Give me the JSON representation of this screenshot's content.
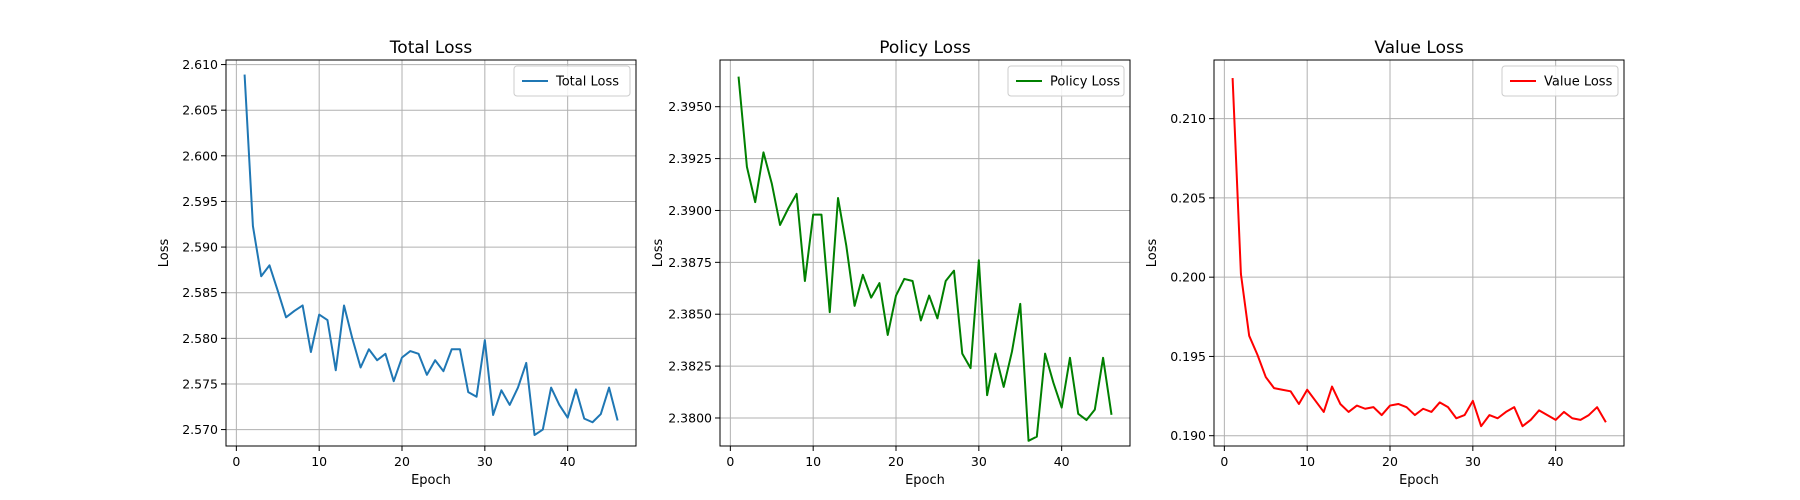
{
  "chart_data": [
    {
      "type": "line",
      "title": "Total Loss",
      "xlabel": "Epoch",
      "ylabel": "Loss",
      "xlim": [
        -1.25,
        48.25
      ],
      "ylim": [
        2.5682,
        2.6105
      ],
      "xticks": [
        0,
        10,
        20,
        30,
        40
      ],
      "yticks": [
        2.57,
        2.575,
        2.58,
        2.585,
        2.59,
        2.595,
        2.6,
        2.605,
        2.61
      ],
      "ytick_labels": [
        "2.570",
        "2.575",
        "2.580",
        "2.585",
        "2.590",
        "2.595",
        "2.600",
        "2.605",
        "2.610"
      ],
      "grid": true,
      "legend_position": "top-right",
      "series": [
        {
          "name": "Total Loss",
          "color": "#1f77b4",
          "x": [
            1,
            2,
            3,
            4,
            5,
            6,
            7,
            8,
            9,
            10,
            11,
            12,
            13,
            14,
            15,
            16,
            17,
            18,
            19,
            20,
            21,
            22,
            23,
            24,
            25,
            26,
            27,
            28,
            29,
            30,
            31,
            32,
            33,
            34,
            35,
            36,
            37,
            38,
            39,
            40,
            41,
            42,
            43,
            44,
            45,
            46
          ],
          "y": [
            2.6088,
            2.5923,
            2.5868,
            2.588,
            2.5852,
            2.5823,
            2.583,
            2.5836,
            2.5785,
            2.5826,
            2.582,
            2.5765,
            2.5836,
            2.58,
            2.5768,
            2.5788,
            2.5776,
            2.5783,
            2.5753,
            2.5779,
            2.5786,
            2.5783,
            2.576,
            2.5776,
            2.5764,
            2.5788,
            2.5788,
            2.5741,
            2.5736,
            2.5798,
            2.5716,
            2.5743,
            2.5727,
            2.5746,
            2.5773,
            2.5694,
            2.57,
            2.5746,
            2.5727,
            2.5713,
            2.5744,
            2.5712,
            2.5708,
            2.5717,
            2.5746,
            2.5711
          ]
        }
      ]
    },
    {
      "type": "line",
      "title": "Policy Loss",
      "xlabel": "Epoch",
      "ylabel": "Loss",
      "xlim": [
        -1.25,
        48.25
      ],
      "ylim": [
        2.37865,
        2.39725
      ],
      "xticks": [
        0,
        10,
        20,
        30,
        40
      ],
      "yticks": [
        2.38,
        2.3825,
        2.385,
        2.3875,
        2.39,
        2.3925,
        2.395
      ],
      "ytick_labels": [
        "2.3800",
        "2.3825",
        "2.3850",
        "2.3875",
        "2.3900",
        "2.3925",
        "2.3950"
      ],
      "grid": true,
      "legend_position": "top-right",
      "series": [
        {
          "name": "Policy Loss",
          "color": "#008000",
          "x": [
            1,
            2,
            3,
            4,
            5,
            6,
            7,
            8,
            9,
            10,
            11,
            12,
            13,
            14,
            15,
            16,
            17,
            18,
            19,
            20,
            21,
            22,
            23,
            24,
            25,
            26,
            27,
            28,
            29,
            30,
            31,
            32,
            33,
            34,
            35,
            36,
            37,
            38,
            39,
            40,
            41,
            42,
            43,
            44,
            45,
            46
          ],
          "y": [
            2.3964,
            2.3921,
            2.3904,
            2.3928,
            2.3913,
            2.3893,
            2.3901,
            2.3908,
            2.3866,
            2.3898,
            2.3898,
            2.3851,
            2.3906,
            2.3883,
            2.3854,
            2.3869,
            2.3858,
            2.3865,
            2.384,
            2.3859,
            2.3867,
            2.3866,
            2.3847,
            2.3859,
            2.3848,
            2.3866,
            2.3871,
            2.3831,
            2.3824,
            2.3876,
            2.3811,
            2.3831,
            2.3815,
            2.3832,
            2.3855,
            2.3789,
            2.3791,
            2.3831,
            2.3817,
            2.3805,
            2.3829,
            2.3802,
            2.3799,
            2.3804,
            2.3829,
            2.3802
          ]
        }
      ]
    },
    {
      "type": "line",
      "title": "Value Loss",
      "xlabel": "Epoch",
      "ylabel": "Loss",
      "xlim": [
        -1.25,
        48.25
      ],
      "ylim": [
        0.18935,
        0.2137
      ],
      "xticks": [
        0,
        10,
        20,
        30,
        40
      ],
      "yticks": [
        0.19,
        0.195,
        0.2,
        0.205,
        0.21
      ],
      "ytick_labels": [
        "0.190",
        "0.195",
        "0.200",
        "0.205",
        "0.210"
      ],
      "grid": true,
      "legend_position": "top-right",
      "series": [
        {
          "name": "Value Loss",
          "color": "#ff0000",
          "x": [
            1,
            2,
            3,
            4,
            5,
            6,
            7,
            8,
            9,
            10,
            11,
            12,
            13,
            14,
            15,
            16,
            17,
            18,
            19,
            20,
            21,
            22,
            23,
            24,
            25,
            26,
            27,
            28,
            29,
            30,
            31,
            32,
            33,
            34,
            35,
            36,
            37,
            38,
            39,
            40,
            41,
            42,
            43,
            44,
            45,
            46
          ],
          "y": [
            0.2125,
            0.2002,
            0.1963,
            0.1951,
            0.1937,
            0.193,
            0.1929,
            0.1928,
            0.192,
            0.1929,
            0.1922,
            0.1915,
            0.1931,
            0.192,
            0.1915,
            0.1919,
            0.1917,
            0.1918,
            0.1913,
            0.1919,
            0.192,
            0.1918,
            0.1913,
            0.1917,
            0.1915,
            0.1921,
            0.1918,
            0.1911,
            0.1913,
            0.1922,
            0.1906,
            0.1913,
            0.1911,
            0.1915,
            0.1918,
            0.1906,
            0.191,
            0.1916,
            0.1913,
            0.191,
            0.1915,
            0.1911,
            0.191,
            0.1913,
            0.1918,
            0.1909
          ]
        }
      ]
    }
  ]
}
